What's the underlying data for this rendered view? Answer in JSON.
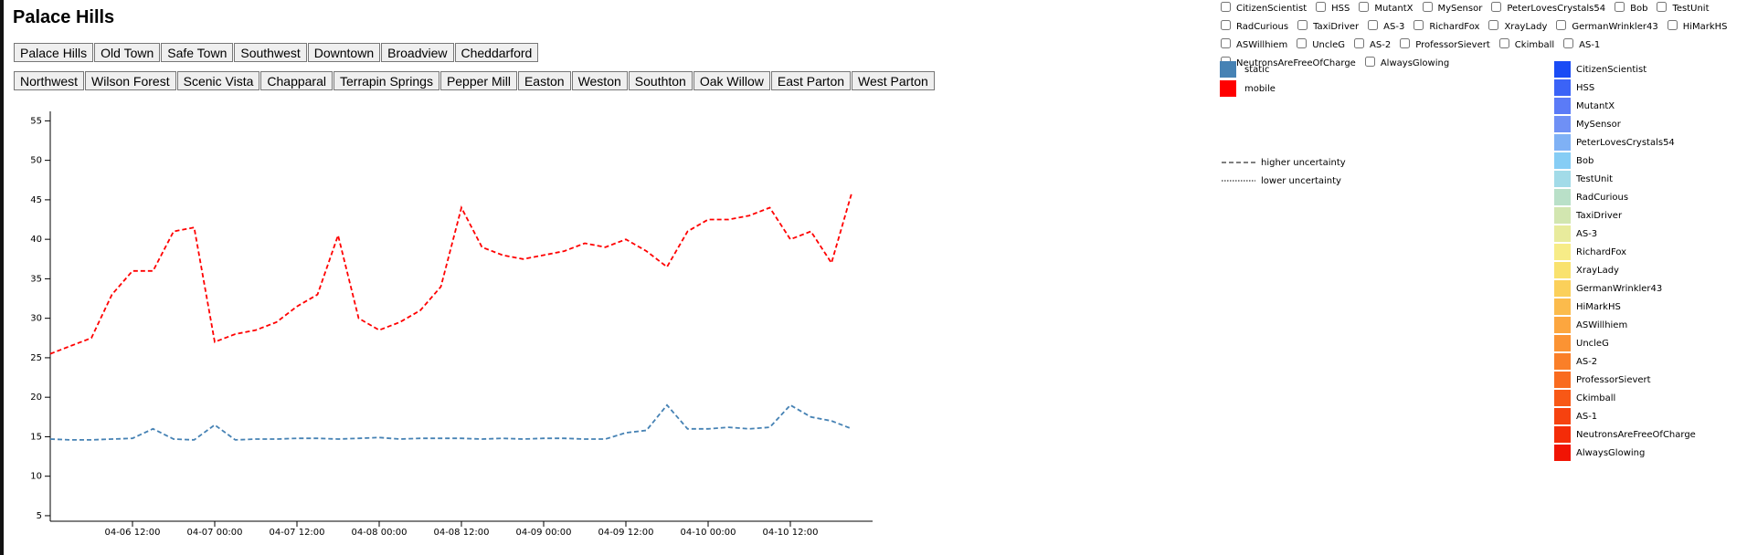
{
  "title": "Palace Hills",
  "region_buttons": [
    "Palace Hills",
    "Old Town",
    "Safe Town",
    "Southwest",
    "Downtown",
    "Broadview",
    "Cheddarford"
  ],
  "neighborhood_buttons": [
    "Northwest",
    "Wilson Forest",
    "Scenic Vista",
    "Chapparal",
    "Terrapin Springs",
    "Pepper Mill",
    "Easton",
    "Weston",
    "Southton",
    "Oak Willow",
    "East Parton",
    "West Parton"
  ],
  "sensors": [
    {
      "name": "CitizenScientist",
      "color": "#1a4cf5"
    },
    {
      "name": "HSS",
      "color": "#3b63f7"
    },
    {
      "name": "MutantX",
      "color": "#5b7bf7"
    },
    {
      "name": "MySensor",
      "color": "#6f90f5"
    },
    {
      "name": "PeterLovesCrystals54",
      "color": "#7fb1f5"
    },
    {
      "name": "Bob",
      "color": "#86cdf5"
    },
    {
      "name": "TestUnit",
      "color": "#a2dbe8"
    },
    {
      "name": "RadCurious",
      "color": "#b9e0c8"
    },
    {
      "name": "TaxiDriver",
      "color": "#d2e6b0"
    },
    {
      "name": "AS-3",
      "color": "#e8eb9c"
    },
    {
      "name": "RichardFox",
      "color": "#f7ec87"
    },
    {
      "name": "XrayLady",
      "color": "#f9e26e"
    },
    {
      "name": "GermanWrinkler43",
      "color": "#fbd05a"
    },
    {
      "name": "HiMarkHS",
      "color": "#fbbb4c"
    },
    {
      "name": "ASWillhiem",
      "color": "#fca63f"
    },
    {
      "name": "UncleG",
      "color": "#fb9333"
    },
    {
      "name": "AS-2",
      "color": "#fa7f28"
    },
    {
      "name": "ProfessorSievert",
      "color": "#f96b1f"
    },
    {
      "name": "Ckimball",
      "color": "#f85816"
    },
    {
      "name": "AS-1",
      "color": "#f6420f"
    },
    {
      "name": "NeutronsAreFreeOfCharge",
      "color": "#f42c08"
    },
    {
      "name": "AlwaysGlowing",
      "color": "#f11404"
    }
  ],
  "uncertainty_legend": [
    "higher uncertainty",
    "lower uncertainty"
  ],
  "chart_data": {
    "type": "line",
    "x": [
      "04-06 00:00",
      "04-06 03:00",
      "04-06 06:00",
      "04-06 09:00",
      "04-06 12:00",
      "04-06 15:00",
      "04-06 18:00",
      "04-06 21:00",
      "04-07 00:00",
      "04-07 03:00",
      "04-07 06:00",
      "04-07 09:00",
      "04-07 12:00",
      "04-07 15:00",
      "04-07 18:00",
      "04-07 21:00",
      "04-08 00:00",
      "04-08 03:00",
      "04-08 06:00",
      "04-08 09:00",
      "04-08 12:00",
      "04-08 15:00",
      "04-08 18:00",
      "04-08 21:00",
      "04-09 00:00",
      "04-09 03:00",
      "04-09 06:00",
      "04-09 09:00",
      "04-09 12:00",
      "04-09 15:00",
      "04-09 18:00",
      "04-09 21:00",
      "04-10 00:00",
      "04-10 03:00",
      "04-10 06:00",
      "04-10 09:00",
      "04-10 12:00",
      "04-10 15:00",
      "04-10 18:00",
      "04-10 21:00"
    ],
    "series": [
      {
        "name": "static",
        "color": "#4682b4",
        "values": [
          14.7,
          14.6,
          14.6,
          14.7,
          14.8,
          16,
          14.7,
          14.6,
          16.5,
          14.6,
          14.7,
          14.7,
          14.8,
          14.8,
          14.7,
          14.8,
          14.9,
          14.7,
          14.8,
          14.8,
          14.8,
          14.7,
          14.8,
          14.7,
          14.8,
          14.8,
          14.7,
          14.7,
          15.5,
          15.8,
          19,
          16,
          16,
          16.2,
          16,
          16.2,
          19,
          17.5,
          17,
          16
        ]
      },
      {
        "name": "mobile",
        "color": "#ff0000",
        "values": [
          25.5,
          26.5,
          27.5,
          33,
          36,
          36,
          41,
          41.5,
          27,
          28,
          28.5,
          29.5,
          31.5,
          33,
          40.5,
          30,
          28.5,
          29.5,
          31,
          34,
          44,
          39,
          38,
          37.5,
          38,
          38.5,
          39.5,
          39,
          40,
          38.5,
          36.5,
          41,
          42.5,
          42.5,
          43,
          44,
          40,
          41,
          37,
          46
        ]
      }
    ],
    "xlim": [
      "04-06 00:00",
      "04-11 00:00"
    ],
    "xticks": [
      "04-06 12:00",
      "04-07 00:00",
      "04-07 12:00",
      "04-08 00:00",
      "04-08 12:00",
      "04-09 00:00",
      "04-09 12:00",
      "04-10 00:00",
      "04-10 12:00"
    ],
    "ylim": [
      4.3,
      56.2
    ],
    "yticks": [
      5,
      10,
      15,
      20,
      25,
      30,
      35,
      40,
      45,
      50,
      55
    ]
  }
}
